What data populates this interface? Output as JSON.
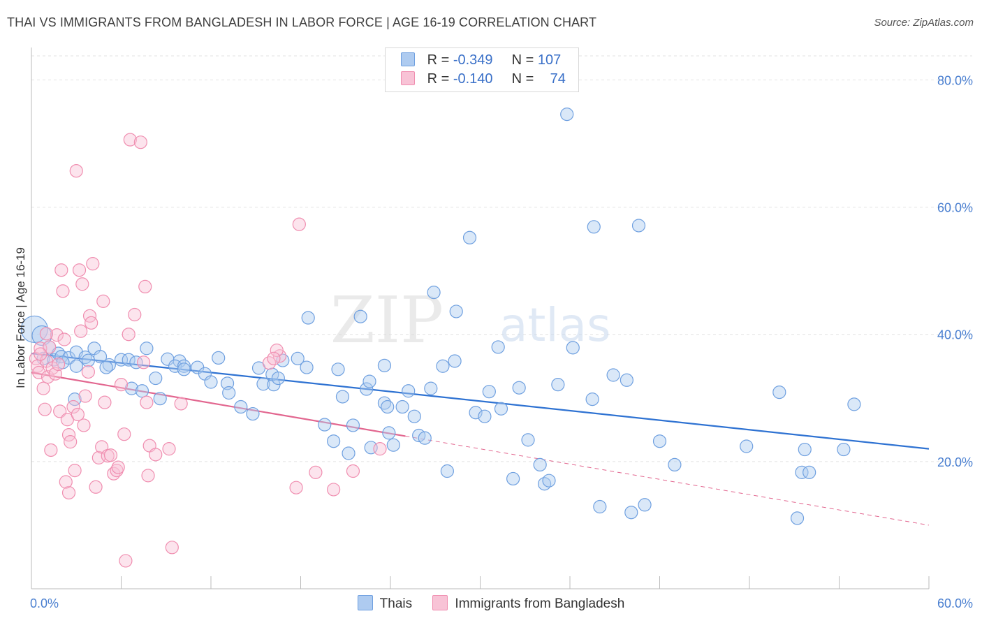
{
  "title": "THAI VS IMMIGRANTS FROM BANGLADESH IN LABOR FORCE | AGE 16-19 CORRELATION CHART",
  "source": "Source: ZipAtlas.com",
  "watermark": {
    "zip": "ZIP",
    "atlas": "atlas"
  },
  "legend_stats": [
    {
      "r_label": "R =",
      "r_value": "-0.349",
      "n_label": "N =",
      "n_value": "107"
    },
    {
      "r_label": "R =",
      "r_value": "-0.140",
      "n_label": "N =",
      "n_value": "74"
    }
  ],
  "chart_data": {
    "type": "scatter",
    "title": "THAI VS IMMIGRANTS FROM BANGLADESH IN LABOR FORCE | AGE 16-19 CORRELATION CHART",
    "xlabel": "",
    "ylabel": "In Labor Force | Age 16-19",
    "xlim": [
      0,
      60
    ],
    "ylim": [
      0,
      84
    ],
    "x_tick_labels": [
      "0.0%",
      "60.0%"
    ],
    "y_ticks": [
      20,
      40,
      60,
      80
    ],
    "y_tick_labels": [
      "20.0%",
      "40.0%",
      "60.0%",
      "80.0%"
    ],
    "grid": true,
    "legend_position": "bottom",
    "series": [
      {
        "name": "Thais",
        "color": "#6fa0e0",
        "fill": "#aecbf0",
        "line_color": "#2e72d2",
        "trend": {
          "x": [
            0,
            60
          ],
          "y": [
            37,
            22
          ]
        },
        "points": [
          [
            0.2,
            40.8,
            3
          ],
          [
            0.7,
            39.8,
            2
          ],
          [
            1.2,
            38,
            1
          ],
          [
            0.8,
            36.2,
            1
          ],
          [
            1.5,
            36,
            1
          ],
          [
            1.8,
            37,
            1
          ],
          [
            2.0,
            36.5,
            1
          ],
          [
            2.5,
            36.3,
            1
          ],
          [
            3.0,
            37.2,
            1
          ],
          [
            3.6,
            36.4,
            1
          ],
          [
            4.2,
            37.8,
            1
          ],
          [
            3.0,
            35,
            1
          ],
          [
            2.9,
            29.8,
            1
          ],
          [
            4.6,
            36.5,
            1
          ],
          [
            5.2,
            35.2,
            1
          ],
          [
            5.0,
            34.8,
            1
          ],
          [
            6.0,
            36,
            1
          ],
          [
            6.5,
            36,
            1
          ],
          [
            7.0,
            35.6,
            1
          ],
          [
            7.7,
            37.8,
            1
          ],
          [
            6.7,
            31.5,
            1
          ],
          [
            7.4,
            31.1,
            1
          ],
          [
            8.3,
            33.1,
            1
          ],
          [
            8.6,
            29.9,
            1
          ],
          [
            9.1,
            36.1,
            1
          ],
          [
            9.9,
            35.8,
            1
          ],
          [
            9.6,
            35,
            1
          ],
          [
            10.2,
            35,
            1
          ],
          [
            11.1,
            34.8,
            1
          ],
          [
            11.6,
            33.8,
            1
          ],
          [
            10.2,
            34.5,
            1
          ],
          [
            12.0,
            32.5,
            1
          ],
          [
            12.5,
            36.3,
            1
          ],
          [
            13.1,
            32.3,
            1
          ],
          [
            13.2,
            30.8,
            1
          ],
          [
            14.0,
            28.6,
            1
          ],
          [
            14.8,
            27.5,
            1
          ],
          [
            15.2,
            34.7,
            1
          ],
          [
            15.5,
            32.2,
            1
          ],
          [
            16.2,
            32.1,
            1
          ],
          [
            16.1,
            33.7,
            1
          ],
          [
            16.5,
            33.1,
            1
          ],
          [
            16.8,
            35.9,
            1
          ],
          [
            17.8,
            36.2,
            1
          ],
          [
            18.4,
            34.8,
            1
          ],
          [
            18.5,
            42.6,
            1
          ],
          [
            19.6,
            25.8,
            1
          ],
          [
            20.2,
            23.2,
            1
          ],
          [
            20.5,
            34.5,
            1
          ],
          [
            20.8,
            30.2,
            1
          ],
          [
            21.2,
            21.3,
            1
          ],
          [
            21.5,
            25.7,
            1
          ],
          [
            22.0,
            42.8,
            1
          ],
          [
            22.4,
            31.4,
            1
          ],
          [
            22.6,
            32.6,
            1
          ],
          [
            22.7,
            22.2,
            1
          ],
          [
            23.6,
            35.1,
            1
          ],
          [
            23.6,
            29.2,
            1
          ],
          [
            23.8,
            28.6,
            1
          ],
          [
            23.9,
            24.5,
            1
          ],
          [
            24.2,
            22.6,
            1
          ],
          [
            24.8,
            28.6,
            1
          ],
          [
            25.2,
            31.1,
            1
          ],
          [
            25.6,
            27.1,
            1
          ],
          [
            25.9,
            24.1,
            1
          ],
          [
            26.3,
            23.7,
            1
          ],
          [
            26.7,
            31.5,
            1
          ],
          [
            26.9,
            46.6,
            1
          ],
          [
            27.5,
            35,
            1
          ],
          [
            27.8,
            18.5,
            1
          ],
          [
            28.3,
            35.8,
            1
          ],
          [
            28.4,
            43.6,
            1
          ],
          [
            29.3,
            55.2,
            1
          ],
          [
            29.7,
            27.7,
            1
          ],
          [
            30.3,
            27.1,
            1
          ],
          [
            30.6,
            31,
            1
          ],
          [
            31.2,
            38,
            1
          ],
          [
            31.4,
            28.3,
            1
          ],
          [
            32.2,
            17.3,
            1
          ],
          [
            32.6,
            31.6,
            1
          ],
          [
            33.2,
            23.4,
            1
          ],
          [
            34.0,
            19.5,
            1
          ],
          [
            34.3,
            16.5,
            1
          ],
          [
            34.6,
            17,
            1
          ],
          [
            35.2,
            32.1,
            1
          ],
          [
            35.8,
            74.6,
            1
          ],
          [
            36.2,
            37.9,
            1
          ],
          [
            37.5,
            29.8,
            1
          ],
          [
            37.6,
            56.9,
            1
          ],
          [
            38.0,
            12.9,
            1
          ],
          [
            38.9,
            33.6,
            1
          ],
          [
            39.8,
            32.8,
            1
          ],
          [
            40.1,
            12,
            1
          ],
          [
            40.6,
            57.1,
            1
          ],
          [
            41.0,
            13.2,
            1
          ],
          [
            42.0,
            23.2,
            1
          ],
          [
            43.0,
            19.5,
            1
          ],
          [
            47.8,
            22.4,
            1
          ],
          [
            50.0,
            30.9,
            1
          ],
          [
            51.5,
            18.3,
            1
          ],
          [
            51.7,
            21.9,
            1
          ],
          [
            52.0,
            18.3,
            1
          ],
          [
            51.2,
            11.1,
            1
          ],
          [
            54.3,
            21.9,
            1
          ],
          [
            55.0,
            29,
            1
          ],
          [
            2.1,
            35.6,
            1
          ],
          [
            3.8,
            35.9,
            1
          ]
        ]
      },
      {
        "name": "Immigrants from Bangladesh",
        "color": "#f08eb0",
        "fill": "#f8c3d6",
        "line_color": "#e2668f",
        "trend": {
          "x": [
            0,
            25
          ],
          "y": [
            34,
            24
          ]
        },
        "trend_dashed": {
          "x": [
            25,
            60
          ],
          "y": [
            24,
            10
          ]
        },
        "points": [
          [
            0.3,
            36.2,
            1
          ],
          [
            0.4,
            35,
            1
          ],
          [
            0.5,
            34,
            1
          ],
          [
            0.6,
            37.8,
            1
          ],
          [
            0.8,
            31.5,
            1
          ],
          [
            0.9,
            28.2,
            1
          ],
          [
            1.0,
            35.8,
            1
          ],
          [
            1.1,
            33.3,
            1
          ],
          [
            1.2,
            38,
            1
          ],
          [
            1.3,
            21.8,
            1
          ],
          [
            1.4,
            34.7,
            1
          ],
          [
            1.6,
            33.8,
            1
          ],
          [
            1.7,
            39.9,
            1
          ],
          [
            1.8,
            35.3,
            1
          ],
          [
            1.9,
            27.9,
            1
          ],
          [
            2.0,
            50.1,
            1
          ],
          [
            2.1,
            46.8,
            1
          ],
          [
            2.2,
            39.2,
            1
          ],
          [
            2.4,
            26.6,
            1
          ],
          [
            2.5,
            24.2,
            1
          ],
          [
            2.5,
            15.1,
            1
          ],
          [
            2.6,
            23.1,
            1
          ],
          [
            2.8,
            28.6,
            1
          ],
          [
            2.9,
            18.6,
            1
          ],
          [
            3.1,
            27.4,
            1
          ],
          [
            3.0,
            65.7,
            1
          ],
          [
            3.2,
            50.1,
            1
          ],
          [
            3.3,
            40.5,
            1
          ],
          [
            3.4,
            47.9,
            1
          ],
          [
            3.5,
            25.7,
            1
          ],
          [
            3.6,
            30.3,
            1
          ],
          [
            3.8,
            34.1,
            1
          ],
          [
            3.9,
            42.9,
            1
          ],
          [
            4.0,
            41.8,
            1
          ],
          [
            4.1,
            51.1,
            1
          ],
          [
            4.3,
            16,
            1
          ],
          [
            4.5,
            20.6,
            1
          ],
          [
            4.7,
            22.3,
            1
          ],
          [
            4.8,
            45.2,
            1
          ],
          [
            4.9,
            29.3,
            1
          ],
          [
            5.1,
            20.9,
            1
          ],
          [
            5.3,
            21,
            1
          ],
          [
            5.5,
            18.1,
            1
          ],
          [
            5.7,
            18.6,
            1
          ],
          [
            5.8,
            19.1,
            1
          ],
          [
            6.0,
            32.1,
            1
          ],
          [
            6.2,
            24.3,
            1
          ],
          [
            6.3,
            4.4,
            1
          ],
          [
            6.5,
            40,
            1
          ],
          [
            6.6,
            70.6,
            1
          ],
          [
            6.9,
            43.1,
            1
          ],
          [
            7.3,
            70.2,
            1
          ],
          [
            7.5,
            35.6,
            1
          ],
          [
            7.6,
            47.5,
            1
          ],
          [
            7.7,
            29.3,
            1
          ],
          [
            7.8,
            17.8,
            1
          ],
          [
            7.9,
            22.5,
            1
          ],
          [
            8.3,
            21.1,
            1
          ],
          [
            9.2,
            22,
            1
          ],
          [
            9.4,
            6.5,
            1
          ],
          [
            10.0,
            29.1,
            1
          ],
          [
            16.6,
            36.6,
            1
          ],
          [
            16.4,
            37.5,
            1
          ],
          [
            15.9,
            35.5,
            1
          ],
          [
            16.2,
            36.2,
            1
          ],
          [
            17.9,
            57.3,
            1
          ],
          [
            17.7,
            15.9,
            1
          ],
          [
            19.0,
            18.3,
            1
          ],
          [
            20.2,
            15.6,
            1
          ],
          [
            21.5,
            18.5,
            1
          ],
          [
            23.3,
            22,
            1
          ],
          [
            1.0,
            40.1,
            1
          ],
          [
            0.6,
            36.9,
            1
          ],
          [
            2.3,
            16.8,
            1
          ]
        ]
      }
    ]
  }
}
